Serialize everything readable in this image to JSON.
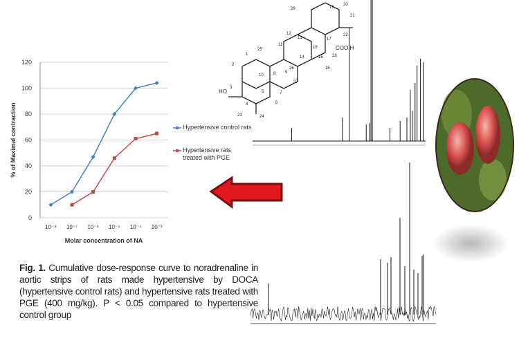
{
  "chart_data": {
    "type": "line",
    "categories": [
      "10⁻⁸",
      "10⁻⁷",
      "10⁻⁶",
      "10⁻⁵",
      "10⁻⁴",
      "10⁻³"
    ],
    "series": [
      {
        "name": "Hypertensive control rats",
        "color": "#4a7ebb",
        "values": [
          10,
          20,
          47,
          80,
          100,
          104
        ]
      },
      {
        "name": "Hypertensive rats treated with PGE",
        "color": "#be4b48",
        "values": [
          null,
          10,
          20,
          46,
          61,
          65
        ]
      }
    ],
    "ylim": [
      0,
      120
    ],
    "yticks": [
      0,
      20,
      40,
      60,
      80,
      100,
      120
    ],
    "grid": true,
    "ylabel": "% of Maximal contraction",
    "xlabel": "Molar concentration of NA"
  },
  "caption": {
    "label": "Fig. 1.",
    "text": "Cumulative dose-response curve to noradrenaline in aortic strips of rats made hypertensive by DOCA (hypertensive control rats) and hypertensive rats treated with PGE (400 mg/kg). P < 0.05 compared to hypertensive control group"
  },
  "structure": {
    "labels": [
      "29",
      "19",
      "20",
      "21",
      "22",
      "18",
      "17",
      "COO H",
      "28",
      "11",
      "12",
      "13",
      "14",
      "15",
      "16",
      "26",
      "27",
      "25",
      "1",
      "2",
      "3",
      "4",
      "5",
      "6",
      "7",
      "8",
      "9",
      "10",
      "HO",
      "23",
      "24"
    ]
  }
}
